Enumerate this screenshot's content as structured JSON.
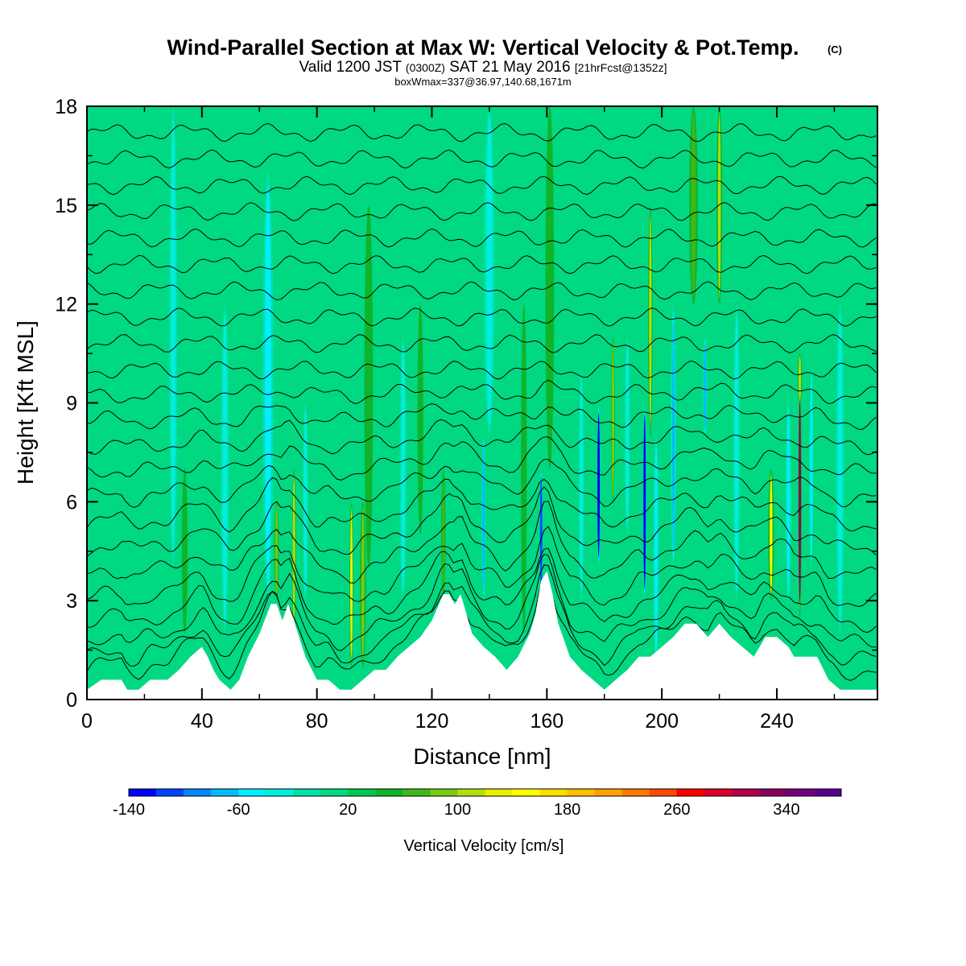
{
  "header": {
    "title": "Wind-Parallel Section at Max W: Vertical Velocity & Pot.Temp.",
    "copyright": "(C)",
    "valid_main": "Valid 1200 JST",
    "valid_utc": "(0300Z)",
    "valid_date": "SAT 21 May 2016",
    "forecast": "[21hrFcst@1352z]",
    "box_wmax": "boxWmax=337@36.97,140.68,1671m"
  },
  "chart_data": {
    "type": "heatmap",
    "title": "Wind-Parallel Section at Max W: Vertical Velocity & Pot.Temp.",
    "xlabel": "Distance [nm]",
    "ylabel": "Height [Kft MSL]",
    "xlim": [
      0,
      275
    ],
    "ylim": [
      0,
      18
    ],
    "x_ticks": [
      "0",
      "40",
      "80",
      "120",
      "160",
      "200",
      "240"
    ],
    "y_ticks": [
      "0",
      "3",
      "6",
      "9",
      "12",
      "15",
      "18"
    ],
    "x_tick_values": [
      0,
      40,
      80,
      120,
      160,
      200,
      240
    ],
    "y_tick_values": [
      0,
      3,
      6,
      9,
      12,
      15,
      18
    ],
    "background_value_cm_s": 0,
    "max_vertical_velocity_cm_s": 337,
    "terrain_kft": [
      [
        0,
        0.3
      ],
      [
        5,
        0.6
      ],
      [
        12,
        0.6
      ],
      [
        14,
        0.3
      ],
      [
        18,
        0.3
      ],
      [
        22,
        0.6
      ],
      [
        28,
        0.6
      ],
      [
        32,
        0.9
      ],
      [
        36,
        1.3
      ],
      [
        40,
        1.6
      ],
      [
        42,
        1.3
      ],
      [
        44,
        0.9
      ],
      [
        46,
        0.6
      ],
      [
        50,
        0.3
      ],
      [
        53,
        0.6
      ],
      [
        56,
        1.3
      ],
      [
        60,
        2.0
      ],
      [
        64,
        2.9
      ],
      [
        66,
        2.9
      ],
      [
        68,
        2.4
      ],
      [
        70,
        2.9
      ],
      [
        72,
        2.4
      ],
      [
        76,
        1.3
      ],
      [
        80,
        0.6
      ],
      [
        84,
        0.6
      ],
      [
        88,
        0.3
      ],
      [
        92,
        0.3
      ],
      [
        96,
        0.6
      ],
      [
        100,
        0.9
      ],
      [
        104,
        0.9
      ],
      [
        108,
        1.3
      ],
      [
        112,
        1.6
      ],
      [
        116,
        1.9
      ],
      [
        120,
        2.4
      ],
      [
        124,
        3.2
      ],
      [
        126,
        3.2
      ],
      [
        128,
        2.9
      ],
      [
        130,
        3.2
      ],
      [
        132,
        2.6
      ],
      [
        134,
        2.0
      ],
      [
        138,
        1.6
      ],
      [
        142,
        1.3
      ],
      [
        146,
        0.9
      ],
      [
        150,
        1.3
      ],
      [
        154,
        2.0
      ],
      [
        156,
        2.6
      ],
      [
        158,
        3.6
      ],
      [
        160,
        3.9
      ],
      [
        162,
        3.2
      ],
      [
        164,
        2.3
      ],
      [
        168,
        1.3
      ],
      [
        172,
        0.9
      ],
      [
        176,
        0.6
      ],
      [
        180,
        0.3
      ],
      [
        184,
        0.6
      ],
      [
        188,
        0.9
      ],
      [
        192,
        1.3
      ],
      [
        196,
        1.3
      ],
      [
        200,
        1.6
      ],
      [
        204,
        1.9
      ],
      [
        208,
        2.3
      ],
      [
        212,
        2.3
      ],
      [
        216,
        1.9
      ],
      [
        220,
        2.3
      ],
      [
        224,
        1.9
      ],
      [
        228,
        1.6
      ],
      [
        232,
        1.3
      ],
      [
        236,
        1.9
      ],
      [
        240,
        1.9
      ],
      [
        244,
        1.6
      ],
      [
        246,
        1.3
      ],
      [
        250,
        1.3
      ],
      [
        254,
        1.3
      ],
      [
        258,
        0.6
      ],
      [
        262,
        0.3
      ],
      [
        266,
        0.3
      ],
      [
        275,
        0.3
      ]
    ],
    "features": [
      {
        "x": 30,
        "z0": 4,
        "z1": 18,
        "w": 3,
        "value": -40
      },
      {
        "x": 34,
        "z0": 2,
        "z1": 7,
        "w": 2,
        "value": 55
      },
      {
        "x": 48,
        "z0": 2,
        "z1": 12,
        "w": 3,
        "value": -40
      },
      {
        "x": 63,
        "z0": 3,
        "z1": 16,
        "w": 4,
        "value": -50
      },
      {
        "x": 66,
        "z0": 3,
        "z1": 6,
        "w": 1.5,
        "value": 80
      },
      {
        "x": 72,
        "z0": 2,
        "z1": 7,
        "w": 1.3,
        "value": 105
      },
      {
        "x": 76,
        "z0": 3,
        "z1": 9,
        "w": 2,
        "value": -40
      },
      {
        "x": 92,
        "z0": 1,
        "z1": 6,
        "w": 1.3,
        "value": 125
      },
      {
        "x": 96,
        "z0": 1,
        "z1": 6,
        "w": 2,
        "value": 85
      },
      {
        "x": 98,
        "z0": 4,
        "z1": 15,
        "w": 3,
        "value": 40
      },
      {
        "x": 110,
        "z0": 3,
        "z1": 11,
        "w": 2.5,
        "value": -40
      },
      {
        "x": 116,
        "z0": 5,
        "z1": 12,
        "w": 2,
        "value": 40
      },
      {
        "x": 124,
        "z0": 3,
        "z1": 7,
        "w": 1.5,
        "value": 60
      },
      {
        "x": 138,
        "z0": 3,
        "z1": 8,
        "w": 1.6,
        "value": -80
      },
      {
        "x": 140,
        "z0": 8,
        "z1": 18,
        "w": 4,
        "value": -40
      },
      {
        "x": 152,
        "z0": 2,
        "z1": 12,
        "w": 2,
        "value": 40
      },
      {
        "x": 158,
        "z0": 3,
        "z1": 7,
        "w": 1.2,
        "value": -110
      },
      {
        "x": 161,
        "z0": 7,
        "z1": 18,
        "w": 3,
        "value": 40
      },
      {
        "x": 172,
        "z0": 3,
        "z1": 10,
        "w": 2,
        "value": -40
      },
      {
        "x": 178,
        "z0": 4,
        "z1": 9,
        "w": 1,
        "value": -125
      },
      {
        "x": 183,
        "z0": 6,
        "z1": 11,
        "w": 1.3,
        "value": 95
      },
      {
        "x": 188,
        "z0": 5,
        "z1": 11,
        "w": 2,
        "value": -40
      },
      {
        "x": 194,
        "z0": 3,
        "z1": 9,
        "w": 1.2,
        "value": -130
      },
      {
        "x": 196,
        "z0": 8,
        "z1": 15,
        "w": 1.6,
        "value": 105
      },
      {
        "x": 198,
        "z0": 1,
        "z1": 8,
        "w": 2,
        "value": -50
      },
      {
        "x": 204,
        "z0": 4,
        "z1": 12,
        "w": 2,
        "value": -70
      },
      {
        "x": 211,
        "z0": 12,
        "z1": 18,
        "w": 3,
        "value": 75
      },
      {
        "x": 215,
        "z0": 8,
        "z1": 11,
        "w": 1.5,
        "value": -70
      },
      {
        "x": 220,
        "z0": 12,
        "z1": 18,
        "w": 2,
        "value": 105
      },
      {
        "x": 226,
        "z0": 3,
        "z1": 12,
        "w": 2.5,
        "value": -40
      },
      {
        "x": 238,
        "z0": 3,
        "z1": 7,
        "w": 2,
        "value": 140
      },
      {
        "x": 244,
        "z0": 3,
        "z1": 9,
        "w": 2,
        "value": -60
      },
      {
        "x": 248,
        "z0": 2.5,
        "z1": 9.5,
        "w": 1.2,
        "value": 320
      },
      {
        "x": 248,
        "z0": 9,
        "z1": 10.5,
        "w": 1.5,
        "value": 100
      },
      {
        "x": 252,
        "z0": 4,
        "z1": 10,
        "w": 1.5,
        "value": -60
      },
      {
        "x": 262,
        "z0": 2,
        "z1": 12,
        "w": 3,
        "value": -35
      }
    ],
    "potential_temperature_contours_kft": [
      0.6,
      1.0,
      1.5,
      2.1,
      2.8,
      3.6,
      4.4,
      5.2,
      6.0,
      6.8,
      7.6,
      8.4,
      9.2,
      10.0,
      10.8,
      11.6,
      12.4,
      13.2,
      14.0,
      14.8,
      15.6,
      16.4,
      17.2
    ]
  },
  "colorbar": {
    "label": "Vertical Velocity [cm/s]",
    "labels": [
      "-140",
      "-60",
      "20",
      "100",
      "180",
      "260",
      "340"
    ],
    "label_values": [
      -140,
      -60,
      20,
      100,
      180,
      260,
      340
    ],
    "min": -140,
    "max": 380,
    "step": 20,
    "colors": [
      "#0000ff",
      "#0044ff",
      "#0088ff",
      "#00bbff",
      "#00eeff",
      "#00eedd",
      "#00e0a8",
      "#00d882",
      "#00c850",
      "#10b428",
      "#40b818",
      "#78cc10",
      "#b0e010",
      "#e8f000",
      "#ffff00",
      "#ffdc00",
      "#ffbe00",
      "#ffa000",
      "#ff7800",
      "#ff4800",
      "#ff0000",
      "#dc0028",
      "#b00048",
      "#880060",
      "#700080",
      "#5a0090"
    ]
  }
}
